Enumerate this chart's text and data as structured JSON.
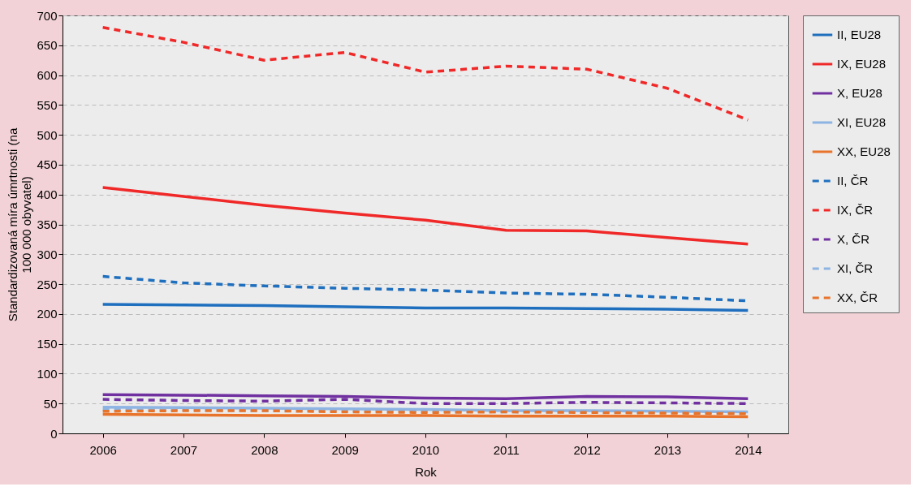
{
  "chart_data": {
    "type": "line",
    "xlabel": "Rok",
    "ylabel": "Standardizovaná míra úmrtnosti (na 100 000 obyvatel)",
    "categories": [
      "2006",
      "2007",
      "2008",
      "2009",
      "2010",
      "2011",
      "2012",
      "2013",
      "2014"
    ],
    "ylim": [
      0,
      700
    ],
    "yticks": [
      0,
      50,
      100,
      150,
      200,
      250,
      300,
      350,
      400,
      450,
      500,
      550,
      600,
      650,
      700
    ],
    "grid": "y",
    "legend": "right",
    "marker": "none",
    "series": [
      {
        "name": "II, EU28",
        "color": "#1f6fbf",
        "line_style": "solid",
        "values": [
          216,
          215,
          214,
          212,
          210,
          210,
          209,
          208,
          206
        ]
      },
      {
        "name": "IX, EU28",
        "color": "#f02828",
        "line_style": "solid",
        "values": [
          412,
          397,
          382,
          369,
          357,
          340,
          339,
          328,
          317
        ]
      },
      {
        "name": "X, EU28",
        "color": "#7030a0",
        "line_style": "solid",
        "values": [
          65,
          64,
          63,
          62,
          59,
          58,
          62,
          61,
          58
        ]
      },
      {
        "name": "XI, EU28",
        "color": "#8db4e2",
        "line_style": "solid",
        "values": [
          44,
          43,
          42,
          41,
          40,
          38,
          38,
          37,
          36
        ]
      },
      {
        "name": "XX, EU28",
        "color": "#e8732a",
        "line_style": "solid",
        "values": [
          32,
          31,
          30,
          30,
          30,
          29,
          29,
          29,
          28
        ]
      },
      {
        "name": "II, ČR",
        "color": "#1f6fbf",
        "line_style": "dashed",
        "values": [
          263,
          252,
          247,
          243,
          240,
          235,
          233,
          228,
          222
        ]
      },
      {
        "name": "IX, ČR",
        "color": "#f02828",
        "line_style": "dashed",
        "values": [
          680,
          655,
          625,
          638,
          605,
          615,
          610,
          578,
          525
        ]
      },
      {
        "name": "X, ČR",
        "color": "#7030a0",
        "line_style": "dashed",
        "values": [
          57,
          55,
          54,
          57,
          50,
          50,
          52,
          51,
          50
        ]
      },
      {
        "name": "XI, ČR",
        "color": "#8db4e2",
        "line_style": "dashed",
        "values": [
          40,
          39,
          38,
          38,
          37,
          36,
          36,
          35,
          35
        ]
      },
      {
        "name": "XX, ČR",
        "color": "#e8732a",
        "line_style": "dashed",
        "values": [
          37,
          38,
          38,
          36,
          35,
          36,
          35,
          34,
          33
        ]
      }
    ]
  }
}
